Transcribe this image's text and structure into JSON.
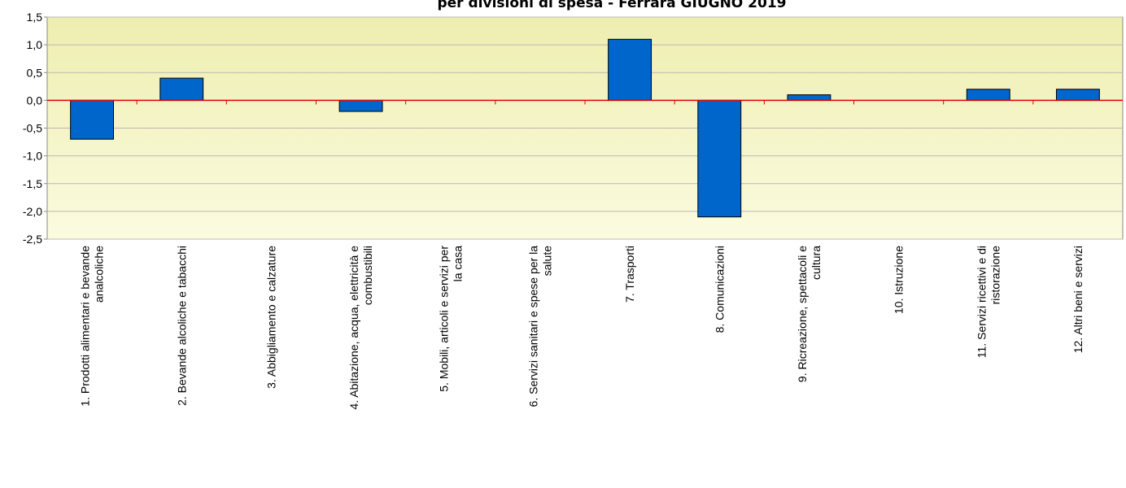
{
  "chart_data": {
    "type": "bar",
    "title": "per divisioni di spesa - Ferrara GIUGNO 2019",
    "categories": [
      "1. Prodotti alimentari e bevande analcoliche",
      "2. Bevande alcoliche e tabacchi",
      "3. Abbigliamento e calzature",
      "4. Abitazione, acqua, elettricità e combustibili",
      "5. Mobili, articoli e servizi per la casa",
      "6. Servizi sanitari e spese per la salute",
      "7. Trasporti",
      "8. Comunicazioni",
      "9. Ricreazione, spettacoli e cultura",
      "10. Istruzione",
      "11. Servizi ricettivi e di ristorazione",
      "12. Altri beni e servizi"
    ],
    "values": [
      -0.7,
      0.4,
      0,
      -0.2,
      0,
      0,
      1.1,
      -2.1,
      0.1,
      0,
      0.2,
      0.2
    ],
    "color": "#0066cc",
    "ylim": [
      -2.5,
      1.5
    ],
    "yticks": [
      {
        "value": 1.5,
        "label": "1,5"
      },
      {
        "value": 1,
        "label": "1,0"
      },
      {
        "value": 0.5,
        "label": "0,5"
      },
      {
        "value": 0,
        "label": "0,0"
      },
      {
        "value": -0.5,
        "label": "-0,5"
      },
      {
        "value": -1,
        "label": "-1,0"
      },
      {
        "value": -1.5,
        "label": "-1,5"
      },
      {
        "value": -2,
        "label": "-2,0"
      },
      {
        "value": -2.5,
        "label": "-2,5"
      }
    ],
    "grid": true
  }
}
